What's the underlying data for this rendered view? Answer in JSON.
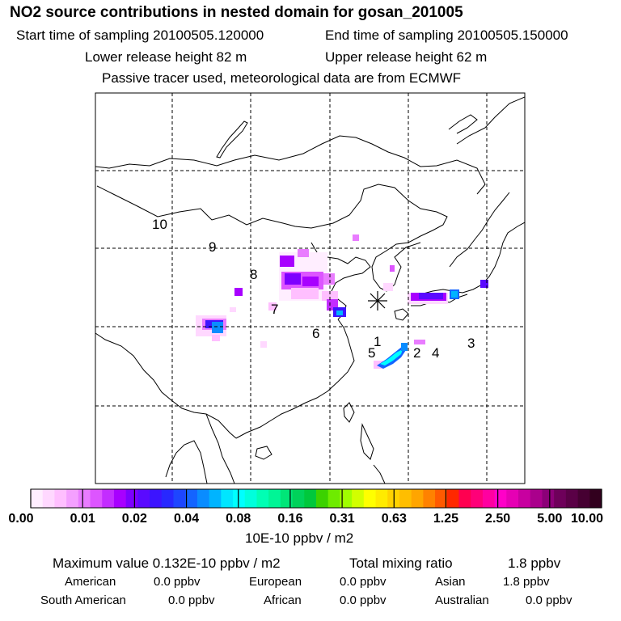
{
  "header": {
    "title": "NO2 source contributions in nested domain for gosan_201005",
    "start_time": "Start time of sampling 20100505.120000",
    "end_time": "End time of sampling 20100505.150000",
    "lower_release": "Lower release height   82 m",
    "upper_release": "Upper release height   62 m",
    "tracer_note": "Passive tracer used, meteorological data are from ECMWF"
  },
  "map": {
    "receptor_icon": "asterisk-icon",
    "region_labels": [
      "1",
      "2",
      "3",
      "4",
      "5",
      "6",
      "7",
      "8",
      "9",
      "10"
    ]
  },
  "colorbar": {
    "tick_labels": [
      "0.00",
      "0.01",
      "0.02",
      "0.04",
      "0.08",
      "0.16",
      "0.31",
      "0.63",
      "1.25",
      "2.50",
      "5.00",
      "10.00"
    ],
    "colors": [
      "#ffeeff",
      "#ffd8ff",
      "#ffbfff",
      "#f4a0ff",
      "#e97cff",
      "#dd55ff",
      "#c32dff",
      "#a800ff",
      "#7d00ff",
      "#5a0aff",
      "#3c14ff",
      "#2828ff",
      "#1e46ff",
      "#1464ff",
      "#0a8cff",
      "#00b4ff",
      "#00e6ff",
      "#00ffff",
      "#00ffdc",
      "#00ffb4",
      "#00f596",
      "#00e678",
      "#00d25a",
      "#00c83c",
      "#3cd200",
      "#6eeb00",
      "#a0ff00",
      "#d2ff00",
      "#ffff00",
      "#ffeb00",
      "#ffd200",
      "#ffbe00",
      "#ffa500",
      "#ff8200",
      "#ff5a00",
      "#ff2800",
      "#ff0050",
      "#ff0078",
      "#ff00a0",
      "#ff00c8",
      "#e600b4",
      "#c800a0",
      "#aa008c",
      "#8c0078",
      "#6e005a",
      "#5a0046",
      "#460032",
      "#32001e"
    ],
    "unit": "10E-10 ppbv / m2"
  },
  "stats": {
    "max_value": "Maximum value  0.132E-10 ppbv / m2",
    "total_label": "Total mixing ratio",
    "total_value": "1.8 ppbv",
    "regions": [
      {
        "name": "American",
        "value": "0.0 ppbv"
      },
      {
        "name": "European",
        "value": "0.0 ppbv"
      },
      {
        "name": "Asian",
        "value": "1.8 ppbv"
      },
      {
        "name": "South American",
        "value": "0.0 ppbv"
      },
      {
        "name": "African",
        "value": "0.0 ppbv"
      },
      {
        "name": "Australian",
        "value": "0.0 ppbv"
      }
    ]
  }
}
